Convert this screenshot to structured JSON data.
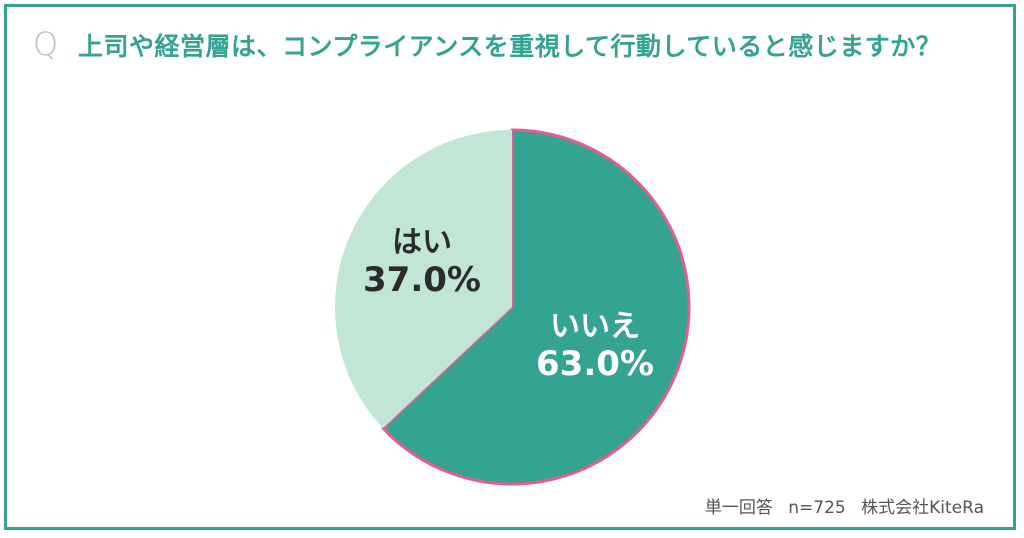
{
  "question": {
    "mark": "Q",
    "text": "上司や経営層は、コンプライアンスを重視して行動していると感じますか？"
  },
  "chart_data": {
    "type": "pie",
    "slices": [
      {
        "label": "いいえ",
        "value": 63.0,
        "value_text": "63.0%",
        "color": "#34a392",
        "text_color": "#ffffff"
      },
      {
        "label": "はい",
        "value": 37.0,
        "value_text": "37.0%",
        "color": "#c1e6d6",
        "text_color": "#2b2b2b"
      }
    ],
    "start_angle": "12 o'clock, clockwise",
    "highlight_stroke": "#e35d8e"
  },
  "footer": {
    "method": "単一回答",
    "sample": "n=725",
    "source": "株式会社KiteRa"
  },
  "colors": {
    "accent": "#34a392",
    "frame": "#34a392"
  }
}
